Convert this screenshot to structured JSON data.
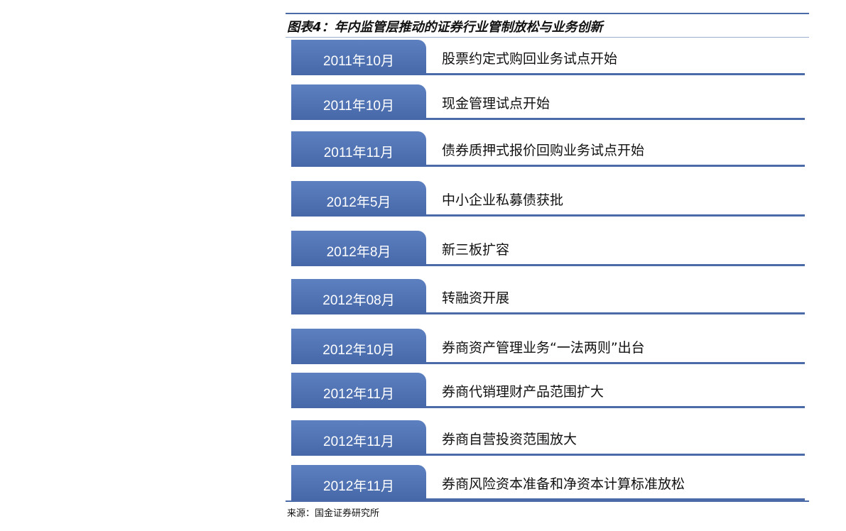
{
  "header": {
    "title": "图表4：年内监管层推动的证券行业管制放松与业务创新"
  },
  "items": [
    {
      "date": "2011年10月",
      "text": "股票约定式购回业务试点开始"
    },
    {
      "date": "2011年10月",
      "text": "现金管理试点开始"
    },
    {
      "date": "2011年11月",
      "text": "债券质押式报价回购业务试点开始"
    },
    {
      "date": "2012年5月",
      "text": "中小企业私募债获批"
    },
    {
      "date": "2012年8月",
      "text": "新三板扩容"
    },
    {
      "date": "2012年08月",
      "text": "转融资开展"
    },
    {
      "date": "2012年10月",
      "text": "券商资产管理业务“一法两则”出台"
    },
    {
      "date": "2012年11月",
      "text": "券商代销理财产品范围扩大"
    },
    {
      "date": "2012年11月",
      "text": "券商自营投资范围放大"
    },
    {
      "date": "2012年11月",
      "text": "券商风险资本准备和净资本计算标准放松"
    }
  ],
  "footer": {
    "source": "来源：国金证券研究所"
  }
}
